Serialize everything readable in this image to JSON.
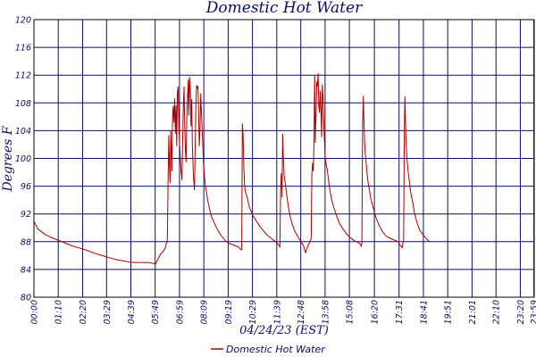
{
  "chart_data": {
    "type": "line",
    "title": "Domestic Hot Water",
    "xlabel": "04/24/23 (EST)",
    "ylabel": "Degrees F",
    "ylim": [
      80,
      120
    ],
    "yticks": [
      80,
      84,
      88,
      92,
      96,
      100,
      104,
      108,
      112,
      116,
      120
    ],
    "xlim_minutes": [
      0,
      1440
    ],
    "xticks": [
      {
        "label": "00:00",
        "minute": 0
      },
      {
        "label": "01:10",
        "minute": 70
      },
      {
        "label": "02:20",
        "minute": 140
      },
      {
        "label": "03:29",
        "minute": 209
      },
      {
        "label": "04:39",
        "minute": 279
      },
      {
        "label": "05:49",
        "minute": 349
      },
      {
        "label": "06:59",
        "minute": 419
      },
      {
        "label": "08:09",
        "minute": 489
      },
      {
        "label": "09:19",
        "minute": 559
      },
      {
        "label": "10:29",
        "minute": 629
      },
      {
        "label": "11:39",
        "minute": 699
      },
      {
        "label": "12:48",
        "minute": 768
      },
      {
        "label": "13:58",
        "minute": 838
      },
      {
        "label": "15:08",
        "minute": 908
      },
      {
        "label": "16:20",
        "minute": 980
      },
      {
        "label": "17:31",
        "minute": 1051
      },
      {
        "label": "18:41",
        "minute": 1121
      },
      {
        "label": "19:51",
        "minute": 1191
      },
      {
        "label": "21:01",
        "minute": 1261
      },
      {
        "label": "22:10",
        "minute": 1330
      },
      {
        "label": "23:20",
        "minute": 1400
      },
      {
        "label": "23:59",
        "minute": 1439
      }
    ],
    "grid": true,
    "legend_position": "bottom-center",
    "series": [
      {
        "name": "Domestic Hot Water",
        "color": "#aa0000",
        "points": [
          [
            0,
            90.9
          ],
          [
            12,
            89.8
          ],
          [
            30,
            89.1
          ],
          [
            50,
            88.6
          ],
          [
            70,
            88.2
          ],
          [
            90,
            87.8
          ],
          [
            110,
            87.4
          ],
          [
            130,
            87.1
          ],
          [
            150,
            86.8
          ],
          [
            170,
            86.4
          ],
          [
            190,
            86.1
          ],
          [
            209,
            85.8
          ],
          [
            230,
            85.5
          ],
          [
            250,
            85.3
          ],
          [
            270,
            85.1
          ],
          [
            290,
            85.0
          ],
          [
            310,
            85.0
          ],
          [
            330,
            85.0
          ],
          [
            350,
            84.8
          ],
          [
            358,
            85.6
          ],
          [
            366,
            86.3
          ],
          [
            372,
            86.6
          ],
          [
            378,
            87.1
          ],
          [
            381,
            87.8
          ],
          [
            384,
            88.0
          ],
          [
            386,
            96.0
          ],
          [
            388,
            103.3
          ],
          [
            390,
            99.0
          ],
          [
            392,
            96.5
          ],
          [
            394,
            104.0
          ],
          [
            397,
            98.2
          ],
          [
            399,
            106.0
          ],
          [
            401,
            107.5
          ],
          [
            403,
            105.2
          ],
          [
            405,
            108.6
          ],
          [
            407,
            103.6
          ],
          [
            409,
            107.6
          ],
          [
            411,
            101.8
          ],
          [
            413,
            109.5
          ],
          [
            415,
            110.3
          ],
          [
            417,
            105.2
          ],
          [
            419,
            102.5
          ],
          [
            421,
            100.3
          ],
          [
            424,
            97.9
          ],
          [
            426,
            96.9
          ],
          [
            428,
            102.3
          ],
          [
            430,
            107.3
          ],
          [
            432,
            110.3
          ],
          [
            434,
            104.6
          ],
          [
            436,
            101.0
          ],
          [
            438,
            99.5
          ],
          [
            440,
            105.7
          ],
          [
            442,
            108.6
          ],
          [
            444,
            111.3
          ],
          [
            446,
            106.2
          ],
          [
            448,
            111.7
          ],
          [
            450,
            110.2
          ],
          [
            452,
            104.7
          ],
          [
            454,
            108.5
          ],
          [
            456,
            102.0
          ],
          [
            459,
            97.5
          ],
          [
            462,
            95.5
          ],
          [
            464,
            100.7
          ],
          [
            466,
            107.3
          ],
          [
            468,
            110.5
          ],
          [
            470,
            110.1
          ],
          [
            472,
            110.4
          ],
          [
            474,
            106.8
          ],
          [
            476,
            101.8
          ],
          [
            478,
            104.3
          ],
          [
            480,
            109.3
          ],
          [
            482,
            107.0
          ],
          [
            485,
            103.3
          ],
          [
            488,
            99.3
          ],
          [
            491,
            97.3
          ],
          [
            494,
            96.0
          ],
          [
            497,
            95.0
          ],
          [
            500,
            94.0
          ],
          [
            506,
            92.6
          ],
          [
            512,
            91.5
          ],
          [
            520,
            90.6
          ],
          [
            530,
            89.6
          ],
          [
            540,
            88.8
          ],
          [
            550,
            88.2
          ],
          [
            560,
            87.8
          ],
          [
            570,
            87.6
          ],
          [
            580,
            87.4
          ],
          [
            590,
            87.2
          ],
          [
            596,
            86.8
          ],
          [
            598,
            86.9
          ],
          [
            600,
            105.0
          ],
          [
            602,
            103.5
          ],
          [
            604,
            99.0
          ],
          [
            606,
            96.3
          ],
          [
            608,
            95.3
          ],
          [
            614,
            94.3
          ],
          [
            620,
            93.0
          ],
          [
            630,
            91.8
          ],
          [
            640,
            91.0
          ],
          [
            650,
            90.2
          ],
          [
            660,
            89.6
          ],
          [
            670,
            89.0
          ],
          [
            680,
            88.6
          ],
          [
            690,
            88.2
          ],
          [
            700,
            87.8
          ],
          [
            705,
            87.5
          ],
          [
            708,
            87.2
          ],
          [
            710,
            95.4
          ],
          [
            712,
            97.8
          ],
          [
            714,
            94.4
          ],
          [
            716,
            103.5
          ],
          [
            718,
            100.2
          ],
          [
            720,
            97.6
          ],
          [
            723,
            96.5
          ],
          [
            726,
            95.4
          ],
          [
            730,
            93.8
          ],
          [
            736,
            92.0
          ],
          [
            742,
            90.7
          ],
          [
            750,
            89.6
          ],
          [
            760,
            88.7
          ],
          [
            770,
            87.9
          ],
          [
            776,
            87.4
          ],
          [
            778,
            87.0
          ],
          [
            780,
            86.6
          ],
          [
            782,
            86.4
          ],
          [
            784,
            86.8
          ],
          [
            788,
            87.3
          ],
          [
            794,
            88.0
          ],
          [
            798,
            88.4
          ],
          [
            800,
            97.7
          ],
          [
            802,
            99.3
          ],
          [
            804,
            98.2
          ],
          [
            806,
            101.7
          ],
          [
            808,
            112.0
          ],
          [
            810,
            102.3
          ],
          [
            812,
            106.4
          ],
          [
            814,
            111.0
          ],
          [
            816,
            110.4
          ],
          [
            818,
            112.2
          ],
          [
            820,
            107.5
          ],
          [
            822,
            106.6
          ],
          [
            824,
            109.7
          ],
          [
            826,
            107.2
          ],
          [
            828,
            103.1
          ],
          [
            830,
            110.6
          ],
          [
            832,
            108.8
          ],
          [
            835,
            104.3
          ],
          [
            838,
            100.4
          ],
          [
            841,
            99.1
          ],
          [
            844,
            98.5
          ],
          [
            847,
            97.3
          ],
          [
            850,
            96.0
          ],
          [
            853,
            95.1
          ],
          [
            858,
            93.8
          ],
          [
            864,
            92.8
          ],
          [
            872,
            91.6
          ],
          [
            880,
            90.6
          ],
          [
            890,
            89.8
          ],
          [
            900,
            89.1
          ],
          [
            910,
            88.6
          ],
          [
            920,
            88.2
          ],
          [
            928,
            88.0
          ],
          [
            936,
            87.8
          ],
          [
            940,
            87.6
          ],
          [
            942,
            87.3
          ],
          [
            944,
            87.8
          ],
          [
            946,
            104.8
          ],
          [
            948,
            109.0
          ],
          [
            950,
            105.2
          ],
          [
            952,
            102.0
          ],
          [
            955,
            100.0
          ],
          [
            958,
            98.2
          ],
          [
            962,
            96.5
          ],
          [
            966,
            95.3
          ],
          [
            970,
            94.1
          ],
          [
            976,
            93.0
          ],
          [
            984,
            91.5
          ],
          [
            994,
            90.3
          ],
          [
            1004,
            89.4
          ],
          [
            1014,
            88.8
          ],
          [
            1024,
            88.5
          ],
          [
            1034,
            88.3
          ],
          [
            1044,
            88.1
          ],
          [
            1050,
            87.9
          ],
          [
            1054,
            87.5
          ],
          [
            1058,
            87.3
          ],
          [
            1060,
            87.1
          ],
          [
            1062,
            87.8
          ],
          [
            1064,
            88.0
          ],
          [
            1066,
            103.7
          ],
          [
            1068,
            108.9
          ],
          [
            1070,
            104.2
          ],
          [
            1072,
            101.5
          ],
          [
            1074,
            99.8
          ],
          [
            1077,
            98.2
          ],
          [
            1080,
            96.9
          ],
          [
            1084,
            95.2
          ],
          [
            1090,
            93.7
          ],
          [
            1096,
            92.0
          ],
          [
            1102,
            90.8
          ],
          [
            1110,
            89.7
          ],
          [
            1120,
            89.0
          ],
          [
            1130,
            88.4
          ],
          [
            1139,
            88.0
          ]
        ]
      }
    ],
    "legend": [
      {
        "label": "Domestic Hot Water",
        "color": "#aa0000"
      }
    ]
  },
  "style": {
    "grid_color": "#0b0b6b",
    "text_color": "#0b0b6b",
    "axis_color": "#000000",
    "background": "#ffffff"
  }
}
